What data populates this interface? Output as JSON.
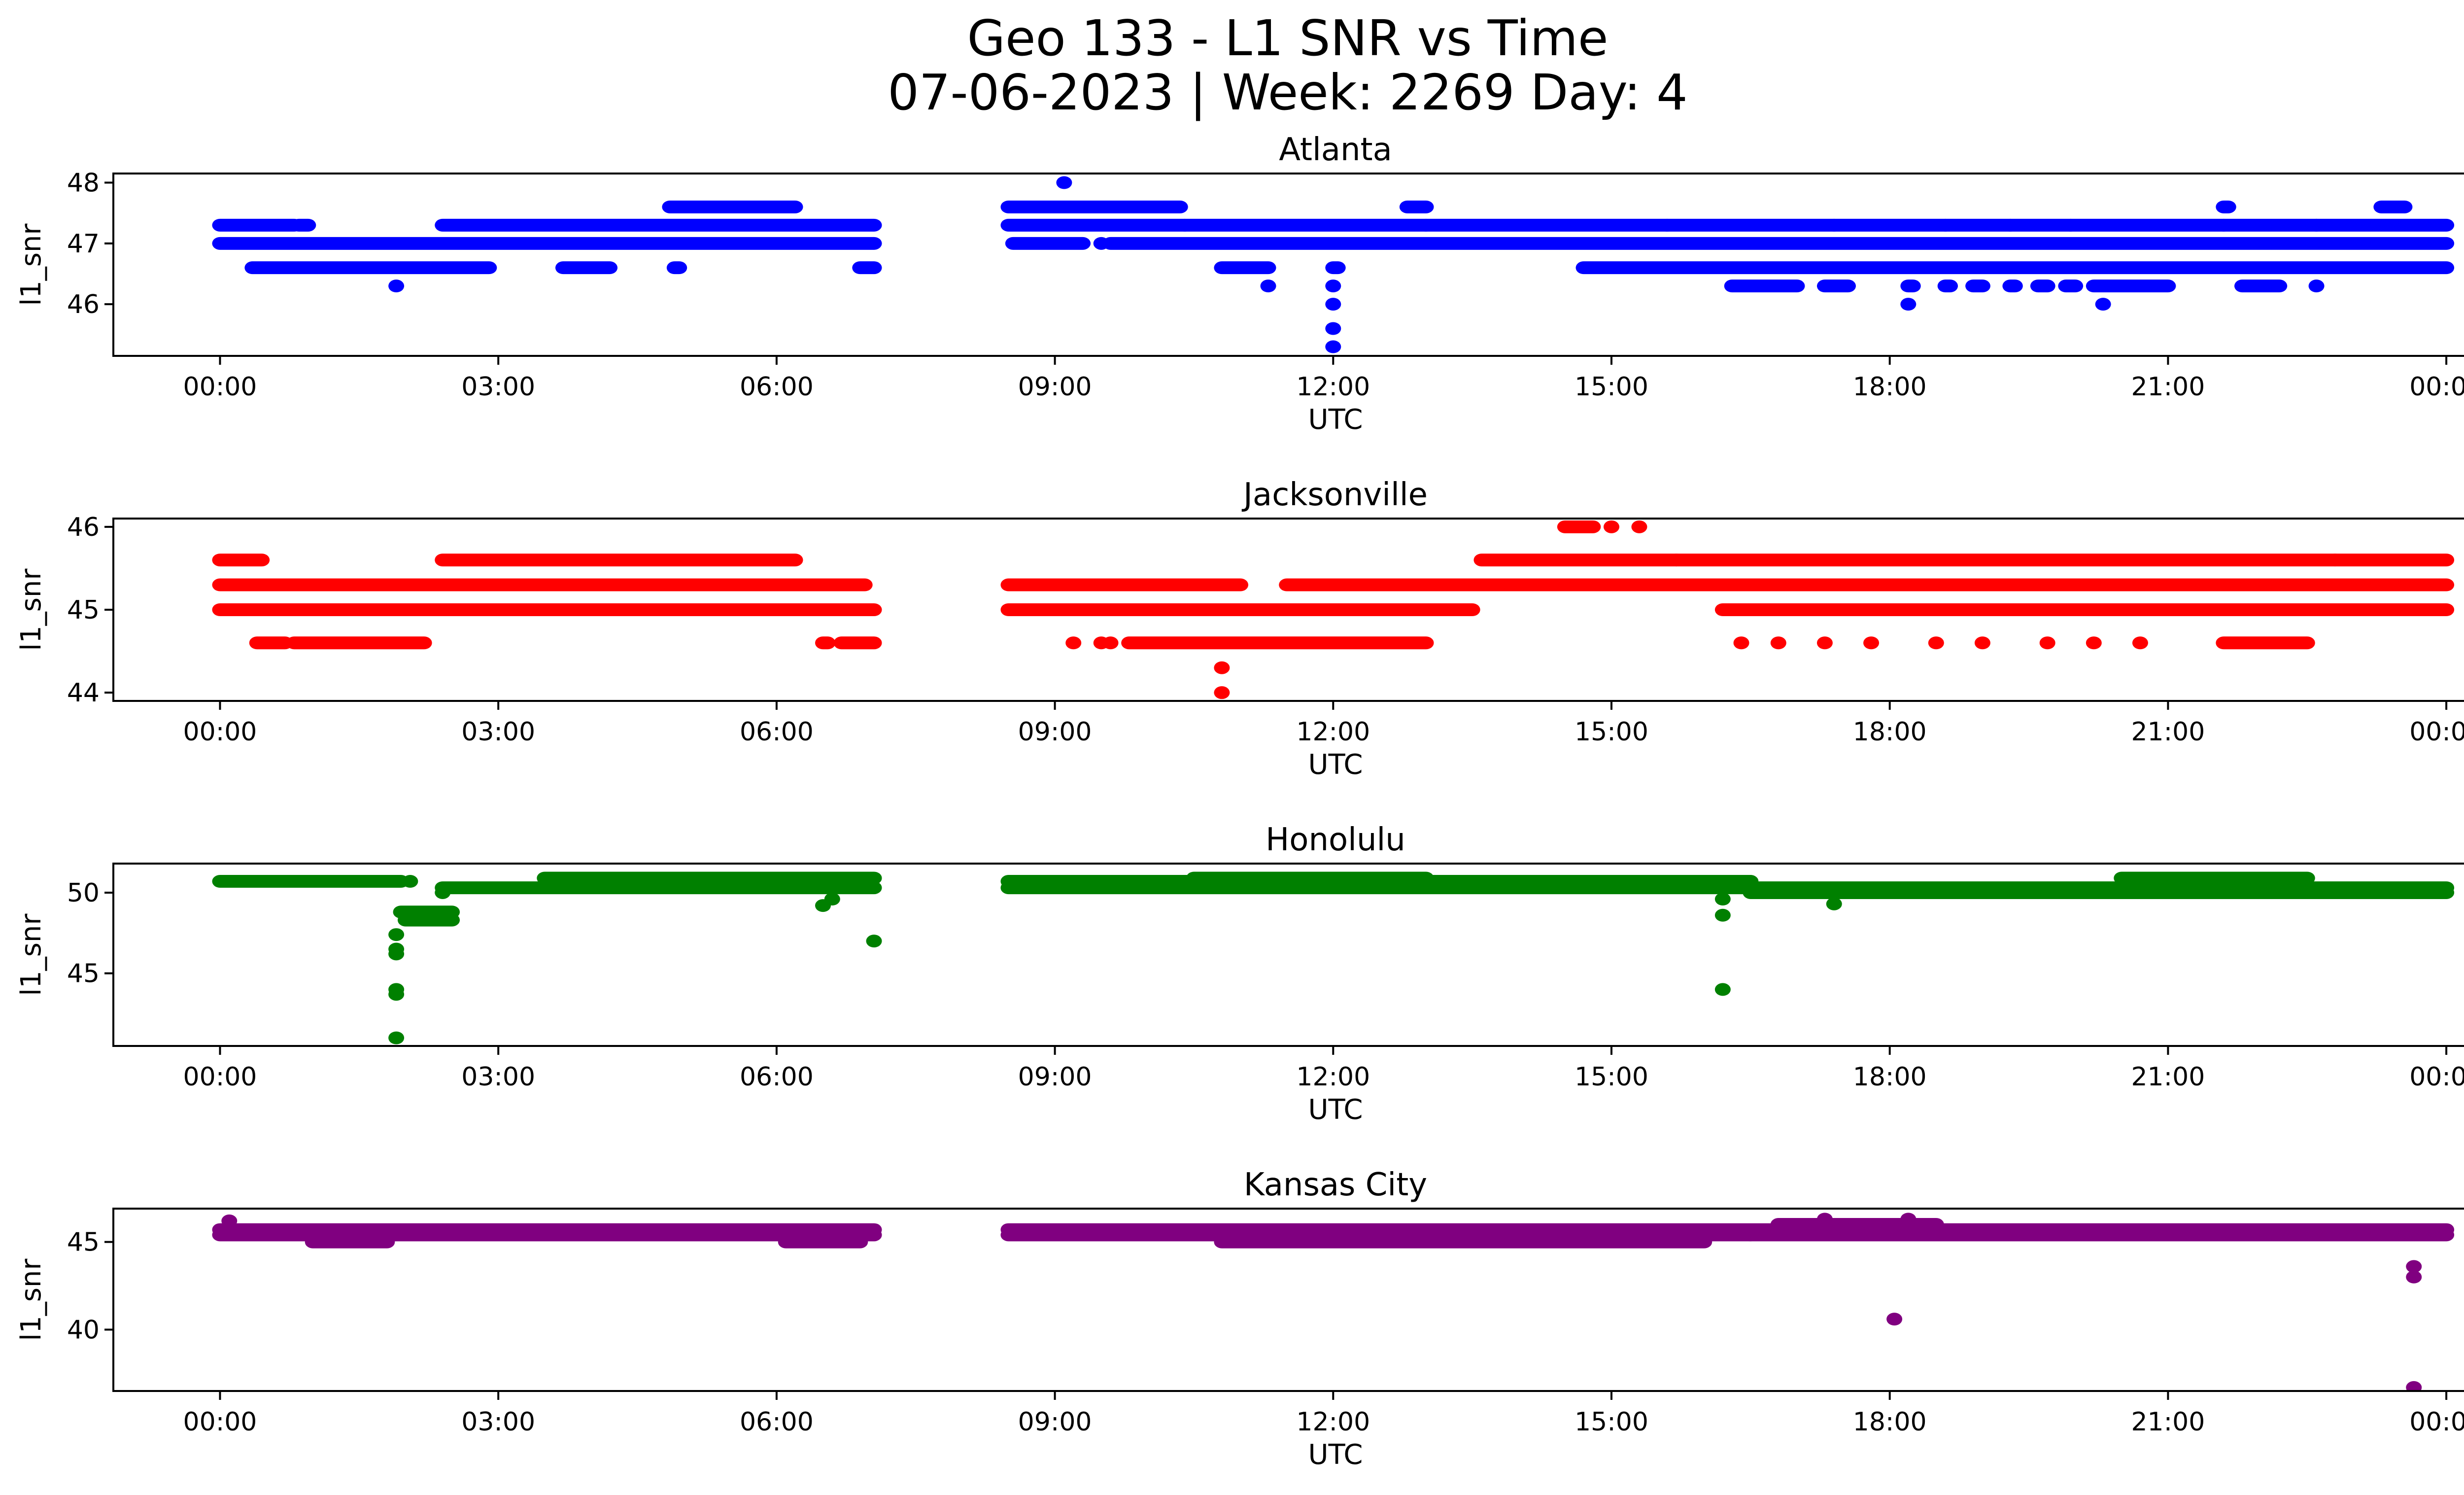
{
  "chart_data": {
    "type": "scatter",
    "title": "Geo 133 - L1 SNR vs Time",
    "subtitle": "07-06-2023 | Week: 2269 Day: 4",
    "xlabel": "UTC",
    "ylabel": "l1_snr",
    "x_ticks": [
      "00:00",
      "03:00",
      "06:00",
      "09:00",
      "12:00",
      "15:00",
      "18:00",
      "21:00",
      "00:00"
    ],
    "x_tick_hours": [
      0,
      3,
      6,
      9,
      12,
      15,
      18,
      21,
      24
    ],
    "xlim_hours": [
      -1.15,
      25.2
    ],
    "grid": false,
    "legend": "none",
    "panels": [
      {
        "title": "Atlanta",
        "color": "#0000ff",
        "ylim": [
          45.15,
          48.15
        ],
        "y_ticks": [
          46,
          47,
          48
        ],
        "runs": [
          {
            "y": 47.3,
            "segments": [
              [
                0.0,
                0.8
              ],
              [
                0.85,
                0.95
              ],
              [
                2.4,
                7.05
              ],
              [
                8.5,
                10.4
              ],
              [
                10.4,
                13.0
              ],
              [
                13.0,
                15.6
              ],
              [
                15.6,
                24.0
              ]
            ]
          },
          {
            "y": 47.0,
            "segments": [
              [
                0.0,
                7.05
              ],
              [
                8.55,
                9.3
              ],
              [
                9.6,
                24.0
              ]
            ]
          },
          {
            "y": 46.6,
            "segments": [
              [
                0.35,
                2.9
              ],
              [
                3.7,
                4.2
              ],
              [
                4.9,
                4.95
              ],
              [
                6.9,
                7.05
              ],
              [
                10.8,
                11.3
              ],
              [
                12.0,
                12.05
              ],
              [
                14.7,
                24.0
              ]
            ]
          },
          {
            "y": 47.6,
            "segments": [
              [
                4.85,
                6.2
              ],
              [
                8.5,
                10.35
              ],
              [
                12.8,
                13.0
              ],
              [
                21.6,
                21.65
              ],
              [
                23.3,
                23.55
              ]
            ]
          },
          {
            "y": 46.3,
            "segments": [
              [
                16.3,
                17.0
              ],
              [
                17.3,
                17.55
              ],
              [
                18.2,
                18.25
              ],
              [
                18.6,
                18.65
              ],
              [
                18.9,
                19.0
              ],
              [
                19.3,
                19.35
              ],
              [
                19.6,
                19.7
              ],
              [
                19.9,
                20.0
              ],
              [
                20.2,
                21.0
              ],
              [
                21.8,
                22.2
              ]
            ]
          }
        ],
        "points": [
          [
            1.9,
            46.3
          ],
          [
            9.1,
            48.0
          ],
          [
            9.5,
            47.0
          ],
          [
            11.3,
            46.3
          ],
          [
            12.0,
            46.3
          ],
          [
            12.0,
            46.0
          ],
          [
            12.0,
            45.6
          ],
          [
            12.0,
            45.3
          ],
          [
            18.2,
            46.0
          ],
          [
            20.3,
            46.0
          ],
          [
            21.6,
            47.3
          ],
          [
            17.4,
            47.3
          ],
          [
            18.6,
            47.3
          ],
          [
            19.3,
            47.3
          ],
          [
            19.95,
            47.3
          ],
          [
            22.6,
            47.3
          ],
          [
            22.6,
            46.3
          ]
        ]
      },
      {
        "title": "Jacksonville",
        "color": "#ff0000",
        "ylim": [
          43.9,
          46.1
        ],
        "y_ticks": [
          44,
          45,
          46
        ],
        "runs": [
          {
            "y": 45.3,
            "segments": [
              [
                0.0,
                6.95
              ],
              [
                8.5,
                11.0
              ],
              [
                11.5,
                24.0
              ]
            ]
          },
          {
            "y": 45.0,
            "segments": [
              [
                0.0,
                7.05
              ],
              [
                8.5,
                13.5
              ],
              [
                16.2,
                24.0
              ]
            ]
          },
          {
            "y": 45.6,
            "segments": [
              [
                0.0,
                0.45
              ],
              [
                2.4,
                6.2
              ],
              [
                13.6,
                15.7
              ],
              [
                15.7,
                24.0
              ]
            ]
          },
          {
            "y": 44.6,
            "segments": [
              [
                0.4,
                0.7
              ],
              [
                0.8,
                2.2
              ],
              [
                6.5,
                6.55
              ],
              [
                6.7,
                7.05
              ],
              [
                9.8,
                13.0
              ],
              [
                21.6,
                22.5
              ]
            ]
          },
          {
            "y": 46.0,
            "segments": [
              [
                14.5,
                14.8
              ]
            ]
          }
        ],
        "points": [
          [
            10.8,
            44.3
          ],
          [
            10.8,
            44.0
          ],
          [
            9.2,
            44.6
          ],
          [
            9.5,
            44.6
          ],
          [
            9.6,
            44.6
          ],
          [
            15.0,
            46.0
          ],
          [
            15.3,
            46.0
          ],
          [
            16.4,
            44.6
          ],
          [
            16.8,
            44.6
          ],
          [
            17.3,
            44.6
          ],
          [
            17.8,
            44.6
          ],
          [
            18.5,
            44.6
          ],
          [
            19.0,
            44.6
          ],
          [
            19.7,
            44.6
          ],
          [
            20.2,
            44.6
          ],
          [
            20.7,
            44.6
          ],
          [
            22.8,
            45.6
          ]
        ]
      },
      {
        "title": "Honolulu",
        "color": "#008000",
        "ylim": [
          40.5,
          51.8
        ],
        "y_ticks": [
          45,
          50
        ],
        "runs": [
          {
            "y": 50.7,
            "segments": [
              [
                0.0,
                1.95
              ],
              [
                8.5,
                16.5
              ]
            ]
          },
          {
            "y": 50.3,
            "segments": [
              [
                2.4,
                7.05
              ],
              [
                8.5,
                24.0
              ]
            ]
          },
          {
            "y": 50.9,
            "segments": [
              [
                3.5,
                7.05
              ],
              [
                10.5,
                13.0
              ],
              [
                20.5,
                22.5
              ]
            ]
          },
          {
            "y": 50.0,
            "segments": [
              [
                16.5,
                24.0
              ]
            ]
          },
          {
            "y": 48.3,
            "segments": [
              [
                2.0,
                2.5
              ]
            ]
          },
          {
            "y": 48.8,
            "segments": [
              [
                1.95,
                2.5
              ]
            ]
          }
        ],
        "points": [
          [
            1.9,
            47.4
          ],
          [
            1.9,
            46.5
          ],
          [
            1.9,
            46.2
          ],
          [
            1.9,
            44.0
          ],
          [
            1.9,
            43.7
          ],
          [
            1.9,
            41.0
          ],
          [
            2.05,
            50.7
          ],
          [
            2.4,
            50.0
          ],
          [
            6.5,
            49.2
          ],
          [
            6.6,
            49.6
          ],
          [
            7.05,
            47.0
          ],
          [
            16.2,
            49.6
          ],
          [
            16.2,
            48.6
          ],
          [
            16.2,
            44.0
          ],
          [
            17.4,
            49.3
          ]
        ]
      },
      {
        "title": "Kansas City",
        "color": "#800080",
        "ylim": [
          36.5,
          46.9
        ],
        "y_ticks": [
          40,
          45
        ],
        "runs": [
          {
            "y": 45.7,
            "segments": [
              [
                0.0,
                7.05
              ],
              [
                8.5,
                24.0
              ]
            ]
          },
          {
            "y": 45.4,
            "segments": [
              [
                0.0,
                7.05
              ],
              [
                8.5,
                16.5
              ],
              [
                16.5,
                24.0
              ]
            ]
          },
          {
            "y": 46.0,
            "segments": [
              [
                16.8,
                18.5
              ]
            ]
          },
          {
            "y": 45.0,
            "segments": [
              [
                1.0,
                1.8
              ],
              [
                10.8,
                16.0
              ],
              [
                6.1,
                6.9
              ]
            ]
          }
        ],
        "points": [
          [
            0.1,
            46.2
          ],
          [
            18.05,
            40.6
          ],
          [
            23.65,
            43.6
          ],
          [
            23.65,
            43.0
          ],
          [
            23.65,
            36.7
          ],
          [
            17.3,
            46.3
          ],
          [
            18.2,
            46.3
          ]
        ]
      }
    ]
  }
}
